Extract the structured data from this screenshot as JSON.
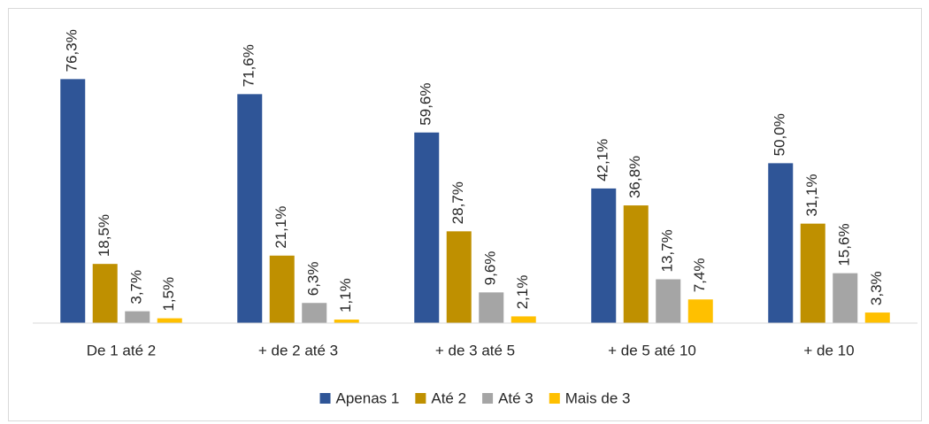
{
  "chart_data": {
    "type": "bar",
    "categories": [
      "De 1 até 2",
      "+ de 2 até 3",
      "+ de 3 até 5",
      "+ de 5 até 10",
      "+ de 10"
    ],
    "series": [
      {
        "name": "Apenas 1",
        "color": "#2f5597",
        "values": [
          76.3,
          71.6,
          59.6,
          42.1,
          50.0
        ],
        "value_labels": [
          "76,3%",
          "71,6%",
          "59,6%",
          "42,1%",
          "50,0%"
        ]
      },
      {
        "name": "Até 2",
        "color": "#bf9000",
        "values": [
          18.5,
          21.1,
          28.7,
          36.8,
          31.1
        ],
        "value_labels": [
          "18,5%",
          "21,1%",
          "28,7%",
          "36,8%",
          "31,1%"
        ]
      },
      {
        "name": "Até 3",
        "color": "#a5a5a5",
        "values": [
          3.7,
          6.3,
          9.6,
          13.7,
          15.6
        ],
        "value_labels": [
          "3,7%",
          "6,3%",
          "9,6%",
          "13,7%",
          "15,6%"
        ]
      },
      {
        "name": "Mais de 3",
        "color": "#ffc000",
        "values": [
          1.5,
          1.1,
          2.1,
          7.4,
          3.3
        ],
        "value_labels": [
          "1,5%",
          "1,1%",
          "2,1%",
          "7,4%",
          "3,3%"
        ]
      }
    ],
    "ylim": [
      0,
      80
    ],
    "legend": "bottom"
  }
}
